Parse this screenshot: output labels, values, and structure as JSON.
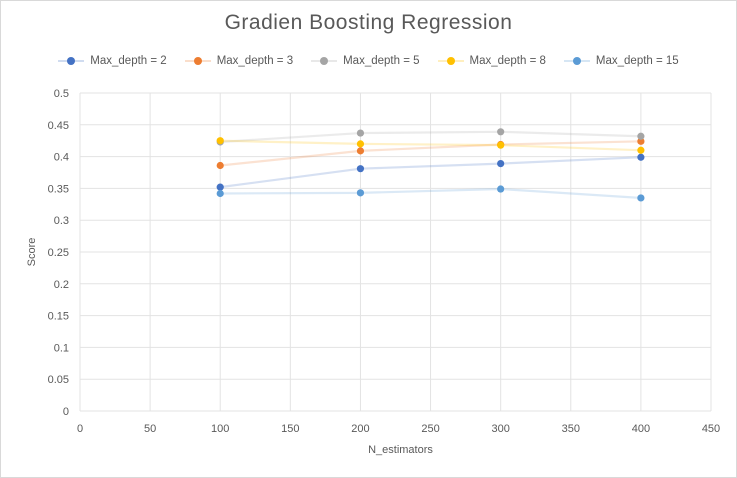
{
  "chart_data": {
    "type": "scatter",
    "title": "Gradien Boosting Regression",
    "xlabel": "N_estimators",
    "ylabel": "Score",
    "xlim": [
      0,
      450
    ],
    "ylim": [
      0,
      0.5
    ],
    "x_ticks": [
      "0",
      "50",
      "100",
      "150",
      "200",
      "250",
      "300",
      "350",
      "400",
      "450"
    ],
    "y_ticks": [
      "0",
      "0.05",
      "0.1",
      "0.15",
      "0.2",
      "0.25",
      "0.3",
      "0.35",
      "0.4",
      "0.45",
      "0.5"
    ],
    "grid": "both",
    "legend_position": "top",
    "series": [
      {
        "name": "Max_depth = 2",
        "color": "#4472c4",
        "x": [
          100,
          200,
          300,
          400
        ],
        "y": [
          0.352,
          0.381,
          0.389,
          0.399
        ]
      },
      {
        "name": "Max_depth = 3",
        "color": "#ed7d31",
        "x": [
          100,
          200,
          300,
          400
        ],
        "y": [
          0.386,
          0.409,
          0.419,
          0.424
        ]
      },
      {
        "name": "Max_depth = 5",
        "color": "#a5a5a5",
        "x": [
          100,
          200,
          300,
          400
        ],
        "y": [
          0.423,
          0.437,
          0.439,
          0.432
        ]
      },
      {
        "name": "Max_depth = 8",
        "color": "#ffc000",
        "x": [
          100,
          200,
          300,
          400
        ],
        "y": [
          0.425,
          0.42,
          0.418,
          0.41
        ]
      },
      {
        "name": "Max_depth = 15",
        "color": "#5b9bd5",
        "x": [
          100,
          200,
          300,
          400
        ],
        "y": [
          0.342,
          0.343,
          0.349,
          0.335
        ]
      }
    ]
  }
}
